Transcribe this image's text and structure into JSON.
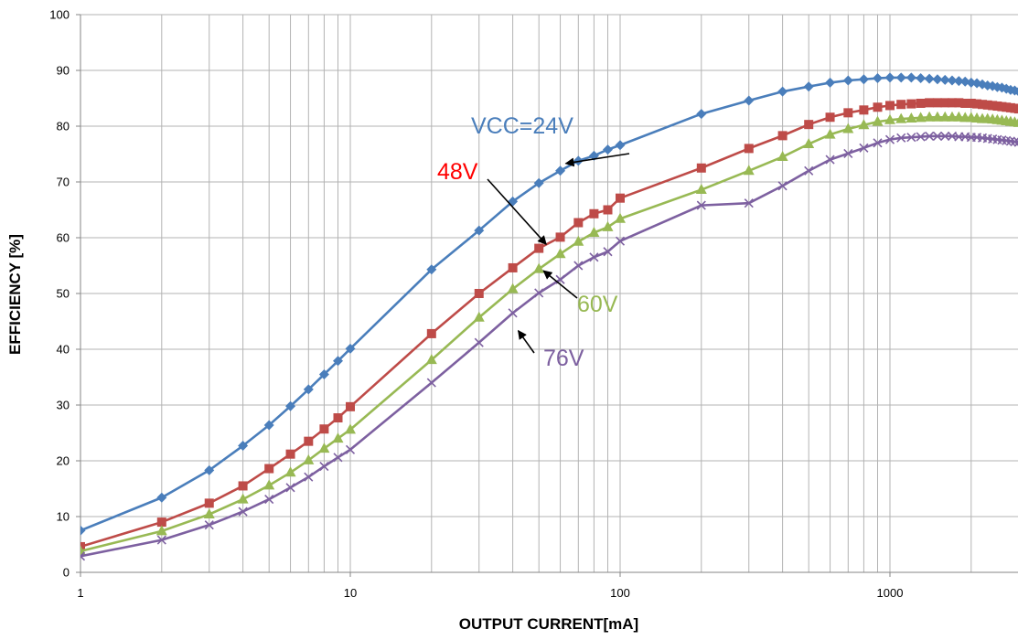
{
  "chart_data": {
    "type": "line",
    "xscale": "log",
    "xlim": [
      1,
      3000
    ],
    "ylim": [
      0,
      100
    ],
    "xticks": [
      1,
      10,
      100,
      1000
    ],
    "xtick_labels": [
      "1",
      "10",
      "100",
      "1000"
    ],
    "yticks": [
      0,
      10,
      20,
      30,
      40,
      50,
      60,
      70,
      80,
      90,
      100
    ],
    "ytick_labels": [
      "0",
      "10",
      "20",
      "30",
      "40",
      "50",
      "60",
      "70",
      "80",
      "90",
      "100"
    ],
    "grid": {
      "x_minor": true,
      "y_major": true
    },
    "xlabel": "OUTPUT CURRENT[mA]",
    "ylabel": "EFFICIENCY [%]",
    "x": [
      1,
      2,
      3,
      4,
      5,
      6,
      7,
      8,
      9,
      10,
      20,
      30,
      40,
      50,
      60,
      70,
      80,
      90,
      100,
      200,
      300,
      400,
      500,
      600,
      700,
      800,
      900,
      1000,
      1100,
      1200,
      1300,
      1400,
      1500,
      1600,
      1700,
      1800,
      1900,
      2000,
      2100,
      2200,
      2300,
      2400,
      2500,
      2600,
      2700,
      2800,
      2900,
      3000
    ],
    "series": [
      {
        "name": "VCC=24V",
        "color": "#4a7ebb",
        "marker": "diamond",
        "values": [
          7.5,
          13.4,
          18.3,
          22.7,
          26.4,
          29.8,
          32.8,
          35.5,
          37.9,
          40.1,
          54.3,
          61.3,
          66.5,
          69.8,
          72,
          73.8,
          74.7,
          75.8,
          76.6,
          82.2,
          84.6,
          86.2,
          87.1,
          87.8,
          88.2,
          88.4,
          88.6,
          88.7,
          88.7,
          88.7,
          88.6,
          88.5,
          88.4,
          88.3,
          88.2,
          88.1,
          88,
          87.8,
          87.7,
          87.5,
          87.3,
          87.2,
          87,
          86.9,
          86.7,
          86.5,
          86.4,
          86.2
        ]
      },
      {
        "name": "48V",
        "color": "#be4b48",
        "marker": "square",
        "values": [
          4.6,
          9,
          12.4,
          15.5,
          18.6,
          21.2,
          23.5,
          25.7,
          27.7,
          29.7,
          42.8,
          50,
          54.6,
          58.1,
          60.1,
          62.7,
          64.3,
          65,
          67.1,
          72.5,
          76,
          78.3,
          80.3,
          81.6,
          82.4,
          82.9,
          83.4,
          83.7,
          83.9,
          84,
          84.1,
          84.2,
          84.2,
          84.2,
          84.2,
          84.2,
          84.1,
          84.1,
          84,
          83.9,
          83.8,
          83.7,
          83.6,
          83.5,
          83.4,
          83.3,
          83.2,
          83.1
        ]
      },
      {
        "name": "60V",
        "color": "#98b954",
        "marker": "triangle",
        "values": [
          3.8,
          7.4,
          10.4,
          13.1,
          15.6,
          17.9,
          20.1,
          22.2,
          24,
          25.6,
          38.1,
          45.7,
          50.8,
          54.4,
          57.1,
          59.3,
          60.9,
          61.9,
          63.4,
          68.6,
          72,
          74.5,
          76.8,
          78.5,
          79.5,
          80.2,
          80.8,
          81.1,
          81.3,
          81.4,
          81.5,
          81.6,
          81.6,
          81.6,
          81.6,
          81.6,
          81.5,
          81.5,
          81.4,
          81.3,
          81.3,
          81.2,
          81.1,
          81,
          80.9,
          80.8,
          80.7,
          80.6
        ]
      },
      {
        "name": "76V",
        "color": "#7d60a0",
        "marker": "x",
        "values": [
          2.9,
          5.8,
          8.5,
          10.9,
          13.1,
          15.2,
          17.1,
          19,
          20.6,
          22,
          34,
          41.2,
          46.5,
          50.1,
          52.5,
          55,
          56.5,
          57.5,
          59.4,
          65.8,
          66.2,
          69.3,
          72,
          74,
          75.1,
          76.1,
          77,
          77.6,
          77.9,
          78,
          78.1,
          78.2,
          78.2,
          78.2,
          78.2,
          78.1,
          78.1,
          78,
          78,
          77.9,
          77.8,
          77.7,
          77.6,
          77.5,
          77.4,
          77.3,
          77.2,
          77.1
        ]
      }
    ],
    "annotations": [
      {
        "text": "VCC=24V",
        "color": "#4a7ebb",
        "arrow_to": [
          60,
          72
        ]
      },
      {
        "text": "48V",
        "color": "#ff0000",
        "arrow_to": [
          50,
          58
        ]
      },
      {
        "text": "60V",
        "color": "#98b954",
        "arrow_to": [
          50,
          54.4
        ]
      },
      {
        "text": "76V",
        "color": "#7d60a0",
        "arrow_to": [
          40,
          43
        ]
      }
    ]
  }
}
